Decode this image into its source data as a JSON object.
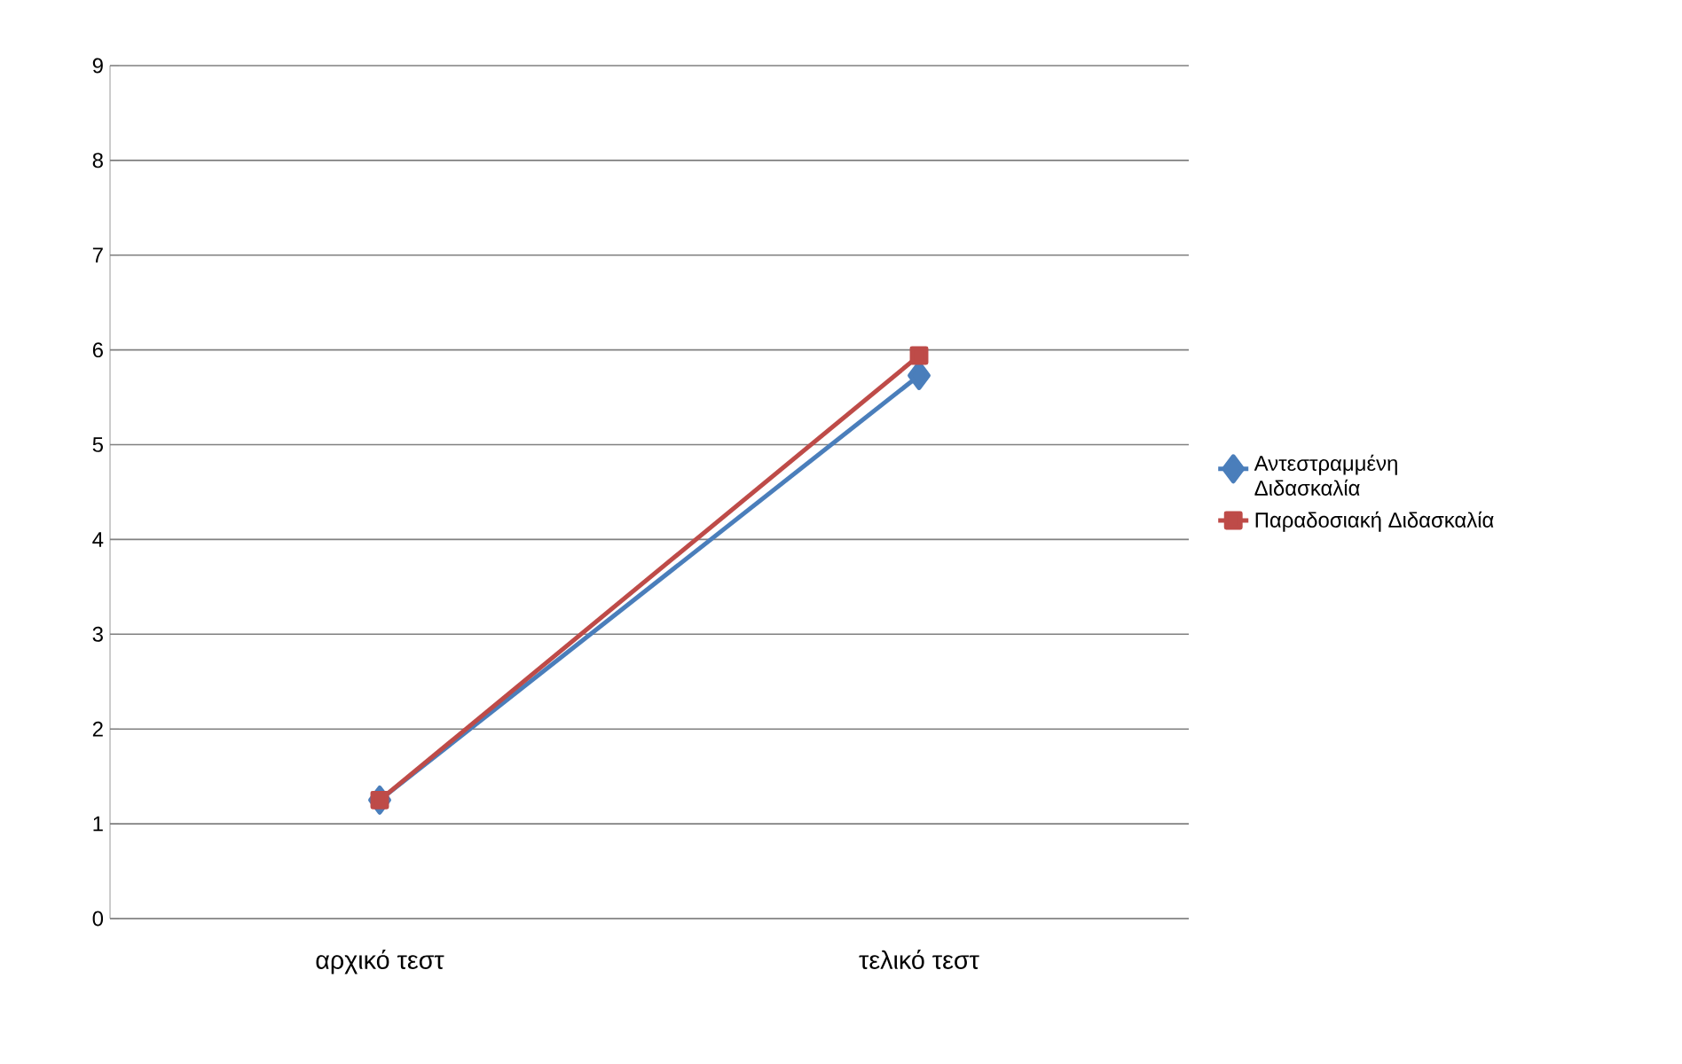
{
  "chart_data": {
    "type": "line",
    "categories": [
      "αρχικό τεστ",
      "τελικό τεστ"
    ],
    "series": [
      {
        "name": "Αντεστραμμένη Διδασκαλία",
        "color": "#4a7ebb",
        "values": [
          1.25,
          5.73
        ],
        "marker": "diamond"
      },
      {
        "name": "Παραδοσιακή Διδασκαλία",
        "color": "#be4b48",
        "values": [
          1.25,
          5.94
        ],
        "marker": "square"
      }
    ],
    "ylim": [
      0,
      9
    ],
    "yticks": [
      0,
      1,
      2,
      3,
      4,
      5,
      6,
      7,
      8,
      9
    ],
    "grid": "y",
    "legend": "right"
  }
}
